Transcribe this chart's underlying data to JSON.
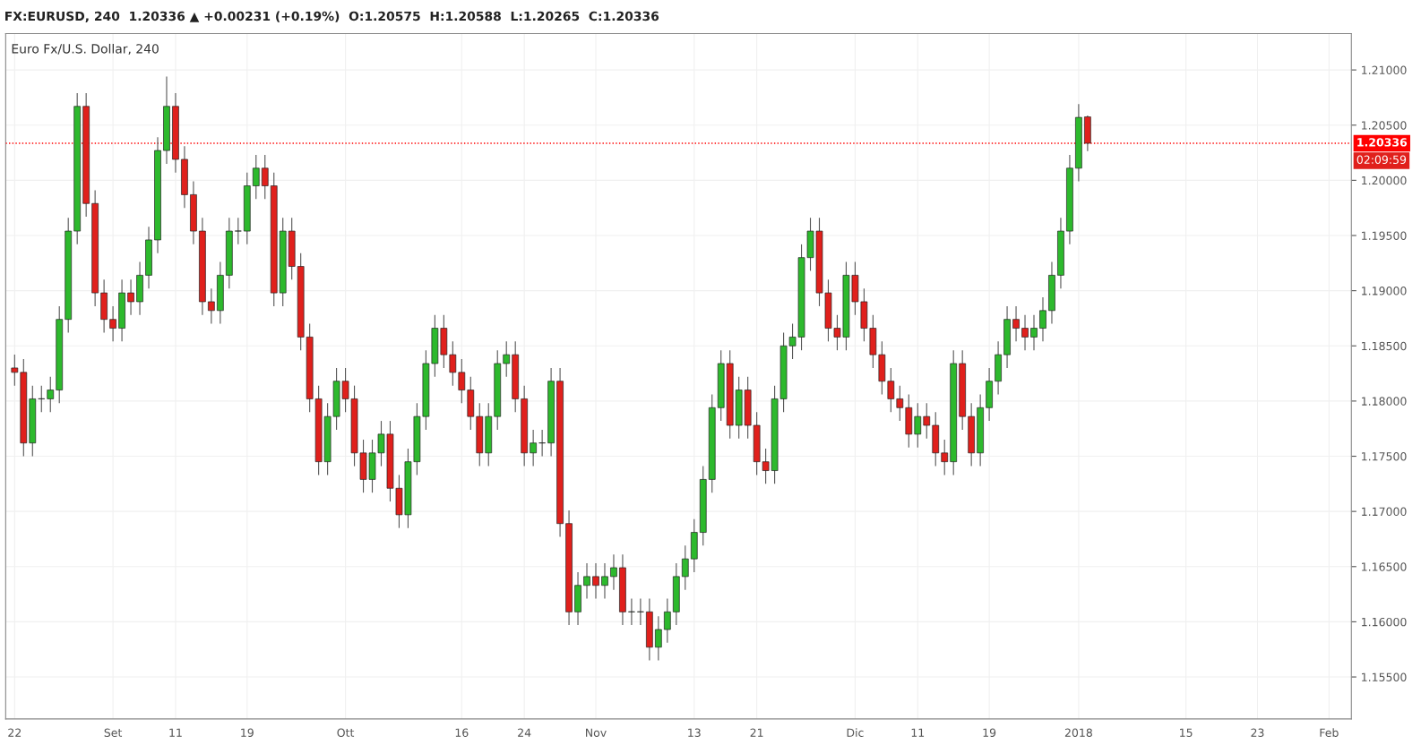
{
  "chart_data": {
    "type": "candlestick",
    "title": "Euro Fx/U.S. Dollar, 240",
    "subtitle": "FX:EURUSD, 240  1.20336 ▲ +0.00231 (+0.19%)  O:1.20575  H:1.20588  L:1.20265  C:1.20336",
    "annotations": [
      "02:09:59"
    ],
    "colors": [
      "#e0201c",
      "#e0201c",
      "#2db92d",
      "#2db92d",
      "#2db92d",
      "#2db92d",
      "#2db92d",
      "#2db92d",
      "#e0201c",
      "#e0201c",
      "#e0201c",
      "#e0201c",
      "#2db92d",
      "#e0201c",
      "#2db92d",
      "#2db92d",
      "#2db92d",
      "#2db92d",
      "#e0201c",
      "#e0201c",
      "#e0201c",
      "#e0201c",
      "#e0201c",
      "#2db92d",
      "#2db92d",
      "#2db92d",
      "#2db92d",
      "#2db92d",
      "#e0201c",
      "#e0201c",
      "#2db92d",
      "#e0201c",
      "#e0201c",
      "#e0201c",
      "#e0201c",
      "#2db92d",
      "#2db92d",
      "#e0201c",
      "#e0201c",
      "#e0201c",
      "#2db92d",
      "#2db92d",
      "#e0201c",
      "#e0201c",
      "#2db92d",
      "#2db92d",
      "#2db92d",
      "#2db92d",
      "#e0201c",
      "#e0201c",
      "#e0201c",
      "#e0201c",
      "#e0201c",
      "#2db92d",
      "#2db92d",
      "#2db92d",
      "#e0201c",
      "#e0201c",
      "#2db92d",
      "#2db92d",
      "#2db92d",
      "#e0201c",
      "#e0201c",
      "#2db92d",
      "#2db92d",
      "#e0201c",
      "#2db92d",
      "#2db92d",
      "#e0201c",
      "#2db92d",
      "#2db92d",
      "#e0201c",
      "#2db92d",
      "#2db92d",
      "#2db92d",
      "#2db92d",
      "#2db92d",
      "#2db92d",
      "#2db92d",
      "#2db92d",
      "#e0201c",
      "#2db92d",
      "#e0201c",
      "#e0201c",
      "#e0201c",
      "#2db92d",
      "#2db92d",
      "#2db92d",
      "#2db92d",
      "#2db92d",
      "#e0201c",
      "#e0201c",
      "#e0201c",
      "#2db92d",
      "#e0201c",
      "#e0201c",
      "#e0201c",
      "#e0201c",
      "#e0201c",
      "#e0201c",
      "#e0201c",
      "#2db92d",
      "#e0201c",
      "#e0201c",
      "#e0201c",
      "#2db92d",
      "#e0201c",
      "#e0201c",
      "#2db92d",
      "#2db92d",
      "#2db92d",
      "#2db92d",
      "#e0201c",
      "#e0201c",
      "#2db92d",
      "#2db92d",
      "#2db92d",
      "#2db92d",
      "#2db92d",
      "#2db92d",
      "#e0201c",
      null,
      null,
      null,
      null,
      null,
      null,
      null,
      null,
      null,
      null,
      null,
      null,
      null,
      null,
      null,
      null,
      null,
      null,
      null,
      null,
      null,
      null,
      null,
      null,
      null,
      null,
      null,
      null,
      null
    ],
    "categories": [
      "22",
      null,
      null,
      null,
      null,
      null,
      null,
      null,
      null,
      null,
      null,
      "Set",
      null,
      null,
      null,
      null,
      null,
      null,
      "11",
      null,
      null,
      null,
      null,
      null,
      null,
      null,
      "19",
      null,
      null,
      null,
      null,
      null,
      null,
      null,
      null,
      null,
      null,
      "Ott",
      null,
      null,
      null,
      null,
      null,
      null,
      null,
      null,
      null,
      null,
      null,
      null,
      "16",
      null,
      null,
      null,
      null,
      null,
      null,
      "24",
      null,
      null,
      null,
      null,
      null,
      null,
      null,
      "Nov",
      null,
      null,
      null,
      null,
      null,
      null,
      null,
      null,
      null,
      null,
      "13",
      null,
      null,
      null,
      null,
      null,
      null,
      "21",
      null,
      null,
      null,
      null,
      null,
      null,
      null,
      null,
      null,
      null,
      "Dic",
      null,
      null,
      null,
      null,
      null,
      null,
      "11",
      null,
      null,
      null,
      null,
      null,
      null,
      null,
      "19",
      null,
      null,
      null,
      null,
      null,
      null,
      null,
      null,
      null,
      "2018",
      null,
      null,
      null,
      null,
      null,
      null,
      null,
      null,
      null,
      null,
      null,
      "15",
      null,
      null,
      null,
      null,
      null,
      null,
      null,
      "23",
      null,
      null,
      null,
      null,
      null,
      null,
      null,
      "Feb",
      null,
      null
    ],
    "ohlc": [
      [
        1.183,
        1.1842,
        1.1814,
        1.1826
      ],
      [
        1.1826,
        1.1838,
        1.175,
        1.1762
      ],
      [
        1.1762,
        1.1814,
        1.175,
        1.1802
      ],
      [
        1.1802,
        1.1814,
        1.179,
        1.1802
      ],
      [
        1.1802,
        1.1822,
        1.179,
        1.181
      ],
      [
        1.181,
        1.1886,
        1.1798,
        1.1874
      ],
      [
        1.1874,
        1.1966,
        1.1862,
        1.1954
      ],
      [
        1.1954,
        1.2079,
        1.1942,
        1.2067
      ],
      [
        1.2067,
        1.2079,
        1.1967,
        1.1979
      ],
      [
        1.1979,
        1.1991,
        1.1886,
        1.1898
      ],
      [
        1.1898,
        1.191,
        1.1862,
        1.1874
      ],
      [
        1.1874,
        1.1886,
        1.1854,
        1.1866
      ],
      [
        1.1866,
        1.191,
        1.1854,
        1.1898
      ],
      [
        1.1898,
        1.191,
        1.1878,
        1.189
      ],
      [
        1.189,
        1.1926,
        1.1878,
        1.1914
      ],
      [
        1.1914,
        1.1958,
        1.1902,
        1.1946
      ],
      [
        1.1946,
        1.2039,
        1.1934,
        1.2027
      ],
      [
        1.2027,
        1.2094,
        1.2015,
        1.2067
      ],
      [
        1.2067,
        1.2079,
        1.2007,
        1.2019
      ],
      [
        1.2019,
        1.2031,
        1.1975,
        1.1987
      ],
      [
        1.1987,
        1.1999,
        1.1942,
        1.1954
      ],
      [
        1.1954,
        1.1966,
        1.1878,
        1.189
      ],
      [
        1.189,
        1.1902,
        1.187,
        1.1882
      ],
      [
        1.1882,
        1.1926,
        1.187,
        1.1914
      ],
      [
        1.1914,
        1.1966,
        1.1902,
        1.1954
      ],
      [
        1.1954,
        1.1966,
        1.1942,
        1.1954
      ],
      [
        1.1954,
        1.2007,
        1.1942,
        1.1995
      ],
      [
        1.1995,
        1.2023,
        1.1983,
        1.2011
      ],
      [
        1.2011,
        1.2023,
        1.1983,
        1.1995
      ],
      [
        1.1995,
        1.2007,
        1.1886,
        1.1898
      ],
      [
        1.1898,
        1.1966,
        1.1886,
        1.1954
      ],
      [
        1.1954,
        1.1966,
        1.191,
        1.1922
      ],
      [
        1.1922,
        1.1934,
        1.1846,
        1.1858
      ],
      [
        1.1858,
        1.187,
        1.179,
        1.1802
      ],
      [
        1.1802,
        1.1814,
        1.1733,
        1.1745
      ],
      [
        1.1745,
        1.1798,
        1.1733,
        1.1786
      ],
      [
        1.1786,
        1.183,
        1.1774,
        1.1818
      ],
      [
        1.1818,
        1.183,
        1.179,
        1.1802
      ],
      [
        1.1802,
        1.1814,
        1.1741,
        1.1753
      ],
      [
        1.1753,
        1.1765,
        1.1717,
        1.1729
      ],
      [
        1.1729,
        1.1765,
        1.1717,
        1.1753
      ],
      [
        1.1753,
        1.1782,
        1.1741,
        1.177
      ],
      [
        1.177,
        1.1782,
        1.1709,
        1.1721
      ],
      [
        1.1721,
        1.1733,
        1.1685,
        1.1697
      ],
      [
        1.1697,
        1.1757,
        1.1685,
        1.1745
      ],
      [
        1.1745,
        1.1798,
        1.1733,
        1.1786
      ],
      [
        1.1786,
        1.1846,
        1.1774,
        1.1834
      ],
      [
        1.1834,
        1.1878,
        1.1822,
        1.1866
      ],
      [
        1.1866,
        1.1878,
        1.183,
        1.1842
      ],
      [
        1.1842,
        1.1854,
        1.1814,
        1.1826
      ],
      [
        1.1826,
        1.1838,
        1.1798,
        1.181
      ],
      [
        1.181,
        1.1822,
        1.1774,
        1.1786
      ],
      [
        1.1786,
        1.1798,
        1.1741,
        1.1753
      ],
      [
        1.1753,
        1.1798,
        1.1741,
        1.1786
      ],
      [
        1.1786,
        1.1846,
        1.1774,
        1.1834
      ],
      [
        1.1834,
        1.1854,
        1.1822,
        1.1842
      ],
      [
        1.1842,
        1.1854,
        1.179,
        1.1802
      ],
      [
        1.1802,
        1.1814,
        1.1741,
        1.1753
      ],
      [
        1.1753,
        1.1774,
        1.1741,
        1.1762
      ],
      [
        1.1762,
        1.1774,
        1.175,
        1.1762
      ],
      [
        1.1762,
        1.183,
        1.175,
        1.1818
      ],
      [
        1.1818,
        1.183,
        1.1677,
        1.1689
      ],
      [
        1.1689,
        1.1701,
        1.1597,
        1.1609
      ],
      [
        1.1609,
        1.1645,
        1.1597,
        1.1633
      ],
      [
        1.1633,
        1.1653,
        1.1621,
        1.1641
      ],
      [
        1.1641,
        1.1653,
        1.1621,
        1.1633
      ],
      [
        1.1633,
        1.1653,
        1.1621,
        1.1641
      ],
      [
        1.1641,
        1.1661,
        1.1629,
        1.1649
      ],
      [
        1.1649,
        1.1661,
        1.1597,
        1.1609
      ],
      [
        1.1609,
        1.1621,
        1.1597,
        1.1609
      ],
      [
        1.1609,
        1.1621,
        1.1597,
        1.1609
      ],
      [
        1.1609,
        1.1621,
        1.1565,
        1.1577
      ],
      [
        1.1577,
        1.1605,
        1.1565,
        1.1593
      ],
      [
        1.1593,
        1.1621,
        1.1581,
        1.1609
      ],
      [
        1.1609,
        1.1653,
        1.1597,
        1.1641
      ],
      [
        1.1641,
        1.1669,
        1.1629,
        1.1657
      ],
      [
        1.1657,
        1.1693,
        1.1645,
        1.1681
      ],
      [
        1.1681,
        1.1741,
        1.1669,
        1.1729
      ],
      [
        1.1729,
        1.1806,
        1.1717,
        1.1794
      ],
      [
        1.1794,
        1.1846,
        1.1782,
        1.1834
      ],
      [
        1.1834,
        1.1846,
        1.1766,
        1.1778
      ],
      [
        1.1778,
        1.1822,
        1.1766,
        1.181
      ],
      [
        1.181,
        1.1822,
        1.1766,
        1.1778
      ],
      [
        1.1778,
        1.179,
        1.1733,
        1.1745
      ],
      [
        1.1745,
        1.1757,
        1.1725,
        1.1737
      ],
      [
        1.1737,
        1.1814,
        1.1725,
        1.1802
      ],
      [
        1.1802,
        1.1862,
        1.179,
        1.185
      ],
      [
        1.185,
        1.187,
        1.1838,
        1.1858
      ],
      [
        1.1858,
        1.1942,
        1.1846,
        1.193
      ],
      [
        1.193,
        1.1966,
        1.1918,
        1.1954
      ],
      [
        1.1954,
        1.1966,
        1.1886,
        1.1898
      ],
      [
        1.1898,
        1.191,
        1.1854,
        1.1866
      ],
      [
        1.1866,
        1.1878,
        1.1846,
        1.1858
      ],
      [
        1.1858,
        1.1926,
        1.1846,
        1.1914
      ],
      [
        1.1914,
        1.1926,
        1.1878,
        1.189
      ],
      [
        1.189,
        1.1902,
        1.1854,
        1.1866
      ],
      [
        1.1866,
        1.1878,
        1.183,
        1.1842
      ],
      [
        1.1842,
        1.1854,
        1.1806,
        1.1818
      ],
      [
        1.1818,
        1.183,
        1.179,
        1.1802
      ],
      [
        1.1802,
        1.1814,
        1.1782,
        1.1794
      ],
      [
        1.1794,
        1.1806,
        1.1758,
        1.177
      ],
      [
        1.177,
        1.1798,
        1.1758,
        1.1786
      ],
      [
        1.1786,
        1.1798,
        1.1766,
        1.1778
      ],
      [
        1.1778,
        1.179,
        1.1741,
        1.1753
      ],
      [
        1.1753,
        1.1765,
        1.1733,
        1.1745
      ],
      [
        1.1745,
        1.1846,
        1.1733,
        1.1834
      ],
      [
        1.1834,
        1.1846,
        1.1774,
        1.1786
      ],
      [
        1.1786,
        1.1798,
        1.1741,
        1.1753
      ],
      [
        1.1753,
        1.1806,
        1.1741,
        1.1794
      ],
      [
        1.1794,
        1.183,
        1.1782,
        1.1818
      ],
      [
        1.1818,
        1.1854,
        1.1806,
        1.1842
      ],
      [
        1.1842,
        1.1886,
        1.183,
        1.1874
      ],
      [
        1.1874,
        1.1886,
        1.1854,
        1.1866
      ],
      [
        1.1866,
        1.1878,
        1.1846,
        1.1858
      ],
      [
        1.1858,
        1.1878,
        1.1846,
        1.1866
      ],
      [
        1.1866,
        1.1894,
        1.1854,
        1.1882
      ],
      [
        1.1882,
        1.1926,
        1.187,
        1.1914
      ],
      [
        1.1914,
        1.1966,
        1.1902,
        1.1954
      ],
      [
        1.1954,
        1.2023,
        1.1942,
        1.2011
      ],
      [
        1.2011,
        1.2069,
        1.1999,
        1.2057
      ],
      [
        1.20575,
        1.20588,
        1.20265,
        1.20336
      ],
      null,
      null,
      null,
      null,
      null,
      null,
      null,
      null,
      null,
      null,
      null,
      null,
      null,
      null,
      null,
      null,
      null,
      null,
      null,
      null,
      null,
      null,
      null,
      null,
      null,
      null,
      null,
      null,
      null
    ],
    "ylim": [
      1.1512,
      1.2133
    ],
    "yticks": [
      {
        "value": 1.155,
        "label": "1.15500"
      },
      {
        "value": 1.16,
        "label": "1.16000"
      },
      {
        "value": 1.165,
        "label": "1.16500"
      },
      {
        "value": 1.17,
        "label": "1.17000"
      },
      {
        "value": 1.175,
        "label": "1.17500"
      },
      {
        "value": 1.18,
        "label": "1.18000"
      },
      {
        "value": 1.185,
        "label": "1.18500"
      },
      {
        "value": 1.19,
        "label": "1.19000"
      },
      {
        "value": 1.195,
        "label": "1.19500"
      },
      {
        "value": 1.2,
        "label": "1.20000"
      },
      {
        "value": 1.205,
        "label": "1.20500"
      },
      {
        "value": 1.21,
        "label": "1.21000"
      }
    ],
    "ref_lines": [
      {
        "axis": "y",
        "value": 1.20336,
        "label": "1.20336",
        "color": "#ff0000",
        "line_style": "dotted"
      }
    ],
    "grid": true
  }
}
